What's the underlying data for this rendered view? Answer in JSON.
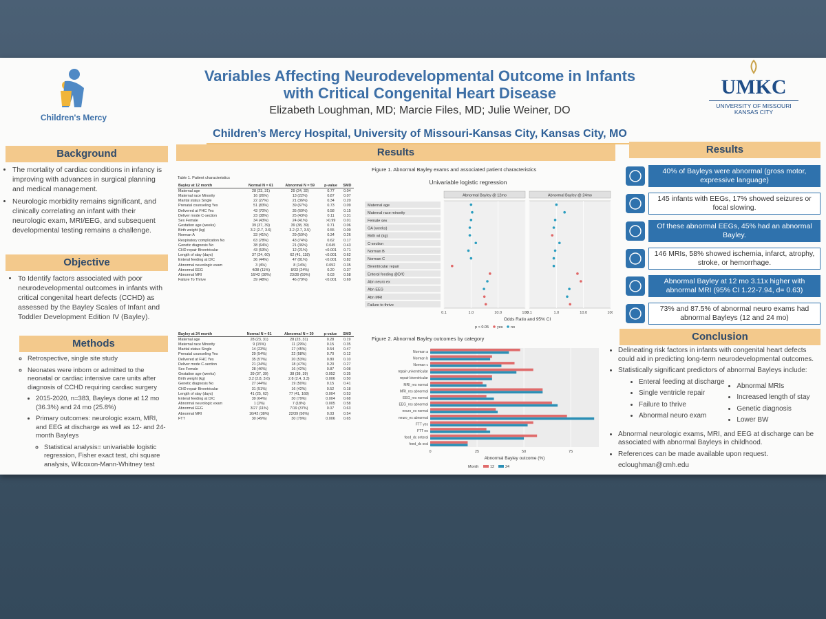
{
  "header": {
    "logo_left": "Children's Mercy",
    "title": "Variables Affecting Neurodevelopmental Outcome in Infants with Critical Congenital Heart Disease",
    "authors": "Elizabeth Loughman, MD; Marcie Files, MD; Julie Weiner, DO",
    "affiliation": "Children’s Mercy Hospital, University of Missouri-Kansas City, Kansas City, MO",
    "logo_right": "UMKC",
    "logo_right_line1": "UNIVERSITY OF MISSOURI",
    "logo_right_line2": "KANSAS CITY"
  },
  "background": {
    "heading": "Background",
    "bullets": [
      "The mortality of cardiac conditions in infancy is improving with advances in surgical planning and medical management.",
      "Neurologic morbidity remains significant, and clinically correlating an infant with their neurologic exam, MRI/EEG, and subsequent developmental testing remains a challenge."
    ]
  },
  "objective": {
    "heading": "Objective",
    "bullets": [
      "To Identify factors associated with poor neurodevelopmental outcomes in infants with critical congenital heart defects (CCHD) as assessed by the Bayley Scales of Infant and Toddler Development Edition IV (Bayley)."
    ]
  },
  "methods": {
    "heading": "Methods",
    "items": [
      {
        "level": 1,
        "text": "Retrospective, single site study"
      },
      {
        "level": 1,
        "text": "Neonates were inborn or admitted to the neonatal or cardiac intensive care units after diagnosis of CCHD requiring cardiac surgery"
      },
      {
        "level": 2,
        "text": "2015-2020, n=383, Bayleys done at 12 mo (36.3%) and 24 mo (25.8%)"
      },
      {
        "level": 2,
        "text": "Primary outcomes: neurologic exam, MRI, and EEG at discharge as well as 12- and 24-month Bayleys"
      },
      {
        "level": 3,
        "text": "Statistical analysis= univariable logistic regression, Fisher exact test, chi square analysis, Wilcoxon-Mann-Whitney test"
      }
    ]
  },
  "results_left": {
    "heading": "Results"
  },
  "table1": {
    "title": "Table 1. Patient characteristics",
    "columns": [
      "Bayley at 12 month",
      "Normal N = 61",
      "Abnormal N = 59",
      "p-value",
      "SMD"
    ],
    "rows": [
      [
        "Maternal age",
        "28 (23, 31)",
        "29 (24, 32)",
        "0.77",
        "0.04"
      ],
      [
        "Maternal race Minority",
        "16 (26%)",
        "13 (22%)",
        "0.87",
        "0.07"
      ],
      [
        "Marital status Single",
        "22 (27%)",
        "21 (36%)",
        "0.34",
        "0.20"
      ],
      [
        "Prenatal counseling Yes",
        "51 (83%)",
        "39 (67%)",
        "0.73",
        "0.09"
      ],
      [
        "Delivered at FHC Yes",
        "43 (70%)",
        "35 (60%)",
        "0.58",
        "0.15"
      ],
      [
        "Deliver mode C-section",
        "23 (38%)",
        "25 (43%)",
        "0.11",
        "0.31"
      ],
      [
        "Sex Female",
        "34 (43%)",
        "24 (41%)",
        ">0.99",
        "0.01"
      ],
      [
        "Gestation age (weeks)",
        "39 (37, 39)",
        "39 (38, 39)",
        "0.71",
        "0.06"
      ],
      [
        "Birth weight (kg)",
        "3.2 (2.7, 3.6)",
        "3.2 (2.7, 3.5)",
        "0.55",
        "0.09"
      ],
      [
        "Norman A",
        "33 (41%)",
        "29 (50%)",
        "0.34",
        "0.26"
      ],
      [
        "Respiratory complication No",
        "63 (78%)",
        "43 (74%)",
        "0.62",
        "0.17"
      ],
      [
        "Genetic diagnosis No",
        "38 (64%)",
        "21 (36%)",
        "0.045",
        "0.43"
      ],
      [
        "CHD repair Biventricular",
        "43 (53%)",
        "12 (21%)",
        "<0.001",
        "0.71"
      ],
      [
        "Length of stay (days)",
        "37 (24, 60)",
        "62 (41, 118)",
        "<0.001",
        "0.62"
      ],
      [
        "Enteral feeding at D/C",
        "36 (44%)",
        "47 (81%)",
        "<0.001",
        "0.82"
      ],
      [
        "Abnormal neurologic exam",
        "3 (4%)",
        "8 (14%)",
        "0.052",
        "0.35"
      ],
      [
        "Abnormal EEG",
        "4/38 (11%)",
        "8/33 (24%)",
        "0.20",
        "0.37"
      ],
      [
        "Abnormal MRI",
        "16/42 (38%)",
        "23/39 (59%)",
        "0.03",
        "0.58"
      ],
      [
        "Failure To Thrive",
        "39 (48%)",
        "46 (79%)",
        "<0.001",
        "0.69"
      ]
    ]
  },
  "table2": {
    "columns": [
      "Bayley at 24 month",
      "Normal N = 61",
      "Abnormal N = 30",
      "p-value",
      "SMD"
    ],
    "rows": [
      [
        "Maternal age",
        "28 (23, 31)",
        "28 (23, 31)",
        "0.28",
        "0.19"
      ],
      [
        "Maternal race Minority",
        "9 (15%)",
        "11 (29%)",
        "0.15",
        "0.35"
      ],
      [
        "Marital status Single",
        "14 (23%)",
        "17 (45%)",
        "0.54",
        "0.47"
      ],
      [
        "Prenatal counseling Yes",
        "29 (54%)",
        "22 (58%)",
        "0.70",
        "0.12"
      ],
      [
        "Delivered at FHC Yes",
        "35 (57%)",
        "20 (53%)",
        "0.80",
        "0.10"
      ],
      [
        "Deliver mode C-section",
        "21 (34%)",
        "18 (47%)",
        "0.20",
        "0.27"
      ],
      [
        "Sex Female",
        "28 (46%)",
        "16 (42%)",
        "0.87",
        "0.08"
      ],
      [
        "Gestation age (weeks)",
        "39 (37, 39)",
        "38 (38, 39)",
        "0.052",
        "0.35"
      ],
      [
        "Birth weight (kg)",
        "3.2 (2.8, 3.6)",
        "2.8 (2.4, 3.3)",
        "0.006",
        "0.50"
      ],
      [
        "Genetic diagnosis No",
        "27 (44%)",
        "19 (50%)",
        "0.15",
        "0.41"
      ],
      [
        "CHD repair Biventricular",
        "31 (51%)",
        "16 (42%)",
        "0.52",
        "0.18"
      ],
      [
        "Length of stay (days)",
        "41 (25, 62)",
        "77 (41, 168)",
        "0.004",
        "0.53"
      ],
      [
        "Enteral feeding at D/C",
        "39 (64%)",
        "30 (79%)",
        "0.004",
        "0.68"
      ],
      [
        "Abnormal neurologic exam",
        "1 (2%)",
        "7 (18%)",
        "0.005",
        "0.58"
      ],
      [
        "Abnormal EEG",
        "3/27 (11%)",
        "7/19 (37%)",
        "0.07",
        "0.63"
      ],
      [
        "Abnormal MRI",
        "16/42 (38%)",
        "22/39 (56%)",
        "0.03",
        "0.54"
      ],
      [
        "FTT",
        "30 (49%)",
        "30 (79%)",
        "0.006",
        "0.65"
      ]
    ]
  },
  "figure1": {
    "caption": "Figure 1. Abnormal Bayley exams and associated patient characteristics",
    "chart_data": {
      "type": "forest",
      "title": "Univariable logistic regression",
      "categories": [
        "Maternal age",
        "Maternal race minority",
        "Female sex",
        "GA (weeks)",
        "Birth wt (kg)",
        "C-section",
        "Norman B",
        "Norman C",
        "Biventricular repair",
        "Enteral feeding @D/C",
        "Abn neuro ex",
        "Abn EEG",
        "Abn MRI",
        "Failure to thrive"
      ],
      "panels": [
        {
          "name": "Abnormal Bayley @ 12mo",
          "values": [
            1.0,
            1.1,
            1.0,
            0.9,
            0.9,
            1.5,
            0.8,
            1.0,
            0.2,
            5,
            4,
            3,
            3.1,
            3.5
          ],
          "colors": [
            "#2a9dbf",
            "#2a9dbf",
            "#2a9dbf",
            "#2a9dbf",
            "#2a9dbf",
            "#2a9dbf",
            "#2a9dbf",
            "#2a9dbf",
            "#e06666",
            "#e06666",
            "#2a9dbf",
            "#2a9dbf",
            "#e06666",
            "#e06666"
          ]
        },
        {
          "name": "Abnormal Bayley @ 24mo",
          "values": [
            1.0,
            2,
            0.9,
            0.8,
            0.7,
            1.3,
            0.9,
            0.8,
            0.8,
            6,
            8,
            3,
            2.5,
            3.2
          ],
          "colors": [
            "#2a9dbf",
            "#2a9dbf",
            "#2a9dbf",
            "#2a9dbf",
            "#e06666",
            "#2a9dbf",
            "#2a9dbf",
            "#2a9dbf",
            "#2a9dbf",
            "#e06666",
            "#e06666",
            "#2a9dbf",
            "#2a9dbf",
            "#e06666"
          ]
        }
      ],
      "x_label": "Odds Ratio and 95% CI",
      "log_x": true,
      "xlim": [
        0.1,
        100
      ],
      "xticks": [
        0.1,
        {
          "value": 1,
          "label": "1.0"
        },
        {
          "value": 10,
          "label": "10.0"
        },
        100
      ],
      "legend_title": "p < 0.05",
      "legend": [
        {
          "name": "yes",
          "color": "#e06666"
        },
        {
          "name": "no",
          "color": "#2a9dbf"
        }
      ]
    }
  },
  "figure2": {
    "caption": "Figure 2. Abnormal Bayley outcomes by category",
    "chart_data": {
      "type": "hbar",
      "categories": [
        "Norman a",
        "Norman b",
        "Norman c",
        "repair univentricular",
        "repair biventricular",
        "MRI_res normal",
        "MRI_res abnormal",
        "EEG_res normal",
        "EEG_res abnormal",
        "neuro_ex normal",
        "neuro_ex abnormal",
        "FTT yes",
        "FTT no",
        "feed_dc enteral",
        "feed_dc oral"
      ],
      "series": [
        {
          "name": "12",
          "color": "#e06b6b",
          "values": [
            48,
            33,
            45,
            55,
            33,
            28,
            60,
            30,
            65,
            35,
            73,
            55,
            30,
            57,
            20
          ]
        },
        {
          "name": "24",
          "color": "#2b8fb5",
          "values": [
            42,
            32,
            38,
            46,
            33,
            30,
            60,
            34,
            68,
            36,
            87.5,
            52,
            32,
            50,
            20
          ]
        }
      ],
      "x_label": "Abnormal Bayley outcome (%)",
      "xlim": [
        0,
        90
      ],
      "xticks": [
        0,
        25,
        50,
        75
      ],
      "legend_title": "Month"
    }
  },
  "results_right": {
    "heading": "Results",
    "boxes": [
      "40% of Bayleys were abnormal (gross motor, expressive language)",
      "145 infants with EEGs, 17% showed seizures or focal slowing.",
      "Of these abnormal EEGs, 45% had an abnormal Bayley.",
      "146 MRIs, 58% showed ischemia, infarct, atrophy, stroke, or hemorrhage.",
      "Abnormal Bayley at 12 mo 3.11x higher with abnormal MRI (95% CI 1.22-7.94, d= 0.63)",
      "73% and 87.5% of abnormal neuro exams had abnormal Bayleys (12 and 24 mo)"
    ]
  },
  "conclusion": {
    "heading": "Conclusion",
    "bullets": [
      "Delineating risk factors in infants with congenital heart defects could aid in predicting long-term neurodevelopmental outcomes.",
      "Statistically significant predictors of abnormal Bayleys include:"
    ],
    "predictors_col1": [
      "Enteral feeding at discharge",
      "Single ventricle repair",
      "Failure to thrive",
      "Abnormal neuro exam"
    ],
    "predictors_col2": [
      "Abnormal MRIs",
      "Increased length of stay",
      "Genetic diagnosis",
      "Lower BW"
    ],
    "tail": [
      "Abnormal neurologic exams, MRI, and EEG at discharge can be associated with abnormal Bayleys in childhood.",
      "References can be made available upon request."
    ],
    "contact": "ecloughman@cmh.edu"
  }
}
